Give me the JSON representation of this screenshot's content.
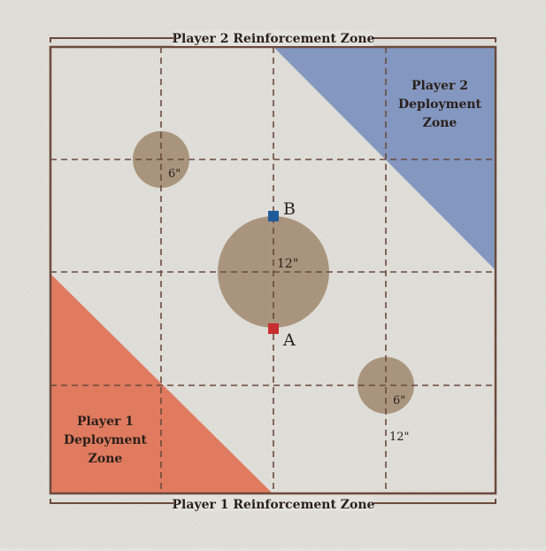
{
  "labels": {
    "p2_reinforcement": "Player 2 Reinforcement Zone",
    "p1_reinforcement": "Player 1 Reinforcement Zone",
    "p2_deployment": [
      "Player 2",
      "Deployment",
      "Zone"
    ],
    "p1_deployment": [
      "Player 1",
      "Deployment",
      "Zone"
    ],
    "objective_a": "A",
    "objective_b": "B",
    "circle_small_top": "6\"",
    "circle_center": "12\"",
    "circle_small_bottom": "6\"",
    "edge_distance": "12\""
  },
  "colors": {
    "frame": "#6b4a3c",
    "grid": "#6b4a3c",
    "p1_zone": "#e07b5f",
    "p2_zone": "#8397c0",
    "terrain": "#a9957e",
    "objective_a": "#c82d2f",
    "objective_b": "#1f5a9a",
    "text": "#2a1f1a",
    "surface": "#e4e2dc"
  }
}
